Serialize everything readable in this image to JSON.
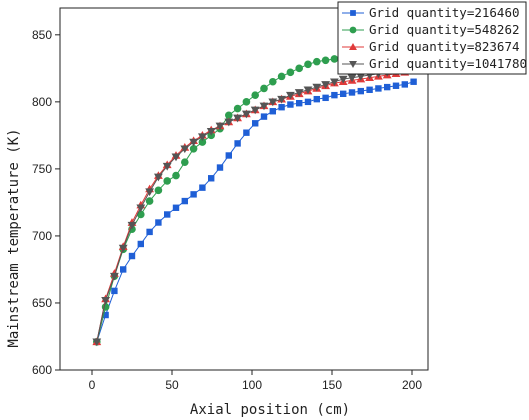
{
  "chart_data": {
    "type": "line",
    "title": "",
    "xlabel": "Axial position (cm)",
    "ylabel": "Mainstream temperature (K)",
    "xlim": [
      -20,
      210
    ],
    "ylim": [
      600,
      870
    ],
    "xticks": [
      0,
      50,
      100,
      150,
      200
    ],
    "yticks": [
      600,
      650,
      700,
      750,
      800,
      850
    ],
    "grid": false,
    "legend_position": "top-right",
    "x": [
      3,
      8.5,
      14,
      19.5,
      25,
      30.5,
      36,
      41.5,
      47,
      52.5,
      58,
      63.5,
      69,
      74.5,
      80,
      85.5,
      91,
      96.5,
      102,
      107.5,
      113,
      118.5,
      124,
      129.5,
      135,
      140.5,
      146,
      151.5,
      157,
      162.5,
      168,
      173.5,
      179,
      184.5,
      190,
      195.5,
      201
    ],
    "series": [
      {
        "name": "Grid quantity=216460",
        "color": "#1f5fd6",
        "marker": "square",
        "values": [
          621,
          641,
          659,
          675,
          685,
          694,
          703,
          710,
          716,
          721,
          726,
          731,
          736,
          743,
          751,
          760,
          769,
          777,
          784,
          789,
          793,
          796,
          798,
          799,
          800,
          802,
          803,
          805,
          806,
          807,
          808,
          809,
          810,
          811,
          812,
          813,
          815
        ]
      },
      {
        "name": "Grid quantity=548262",
        "color": "#2e9e4f",
        "marker": "circle",
        "values": [
          621,
          647,
          670,
          690,
          705,
          716,
          726,
          734,
          741,
          745,
          755,
          765,
          770,
          775,
          780,
          790,
          795,
          800,
          805,
          810,
          815,
          819,
          822,
          825,
          828,
          830,
          831,
          832,
          833,
          834,
          835,
          836,
          838,
          840,
          842,
          843,
          846
        ]
      },
      {
        "name": "Grid quantity=823674",
        "color": "#e03a3a",
        "marker": "triangle-up",
        "values": [
          621,
          653,
          672,
          692,
          710,
          723,
          735,
          745,
          753,
          760,
          766,
          771,
          775,
          779,
          782,
          785,
          788,
          791,
          794,
          797,
          800,
          802,
          804,
          806,
          808,
          810,
          812,
          814,
          815,
          816,
          817,
          818,
          819,
          820,
          821,
          822,
          823
        ]
      },
      {
        "name": "Grid quantity=1041780",
        "color": "#555555",
        "marker": "triangle-down",
        "values": [
          621,
          652,
          670,
          691,
          708,
          721,
          733,
          744,
          752,
          759,
          765,
          770,
          774,
          778,
          782,
          785,
          788,
          791,
          794,
          797,
          800,
          802,
          805,
          807,
          809,
          811,
          813,
          815,
          817,
          818,
          819,
          820,
          821,
          822,
          823,
          824,
          825
        ]
      }
    ]
  }
}
